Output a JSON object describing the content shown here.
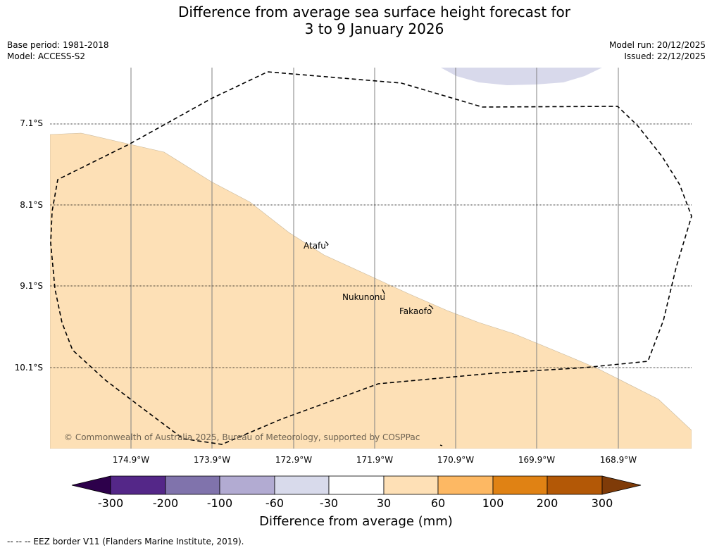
{
  "title": {
    "line1": "Difference from average sea surface height forecast for",
    "line2": "3 to 9 January 2026"
  },
  "meta": {
    "base_period": "Base period: 1981-2018",
    "model": "Model: ACCESS-S2",
    "model_run": "Model run: 20/12/2025",
    "issued": "Issued: 22/12/2025"
  },
  "map": {
    "latitudes": [
      "7.1°S",
      "8.1°S",
      "9.1°S",
      "10.1°S"
    ],
    "longitudes": [
      "174.9°W",
      "173.9°W",
      "172.9°W",
      "171.9°W",
      "170.9°W",
      "169.9°W",
      "168.9°W"
    ],
    "places": {
      "atafu": "Atafu",
      "nukunonu": "Nukunonu",
      "fakaofo": "Fakaofo"
    },
    "copyright": "© Commonwealth of Australia 2025, Bureau of Meteorology, supported by COSPPac",
    "colors": {
      "anomaly_30_60": "#fde0b6",
      "anomaly_neg30_neg60": "#d8d9eb",
      "eez_line": "#000000",
      "graticule": "#808080"
    }
  },
  "colorbar": {
    "ticks": [
      "-300",
      "-200",
      "-100",
      "-60",
      "-30",
      "30",
      "60",
      "100",
      "200",
      "300"
    ],
    "colors": [
      "#2d004b",
      "#542788",
      "#8073ac",
      "#b2abd2",
      "#d8daeb",
      "#ffffff",
      "#fee0b6",
      "#fdb863",
      "#e08214",
      "#b35806",
      "#7f3b08"
    ],
    "label": "Difference from average (mm)"
  },
  "legend": {
    "eez": "--  --  -- EEZ border V11 (Flanders Marine Institute, 2019)."
  }
}
